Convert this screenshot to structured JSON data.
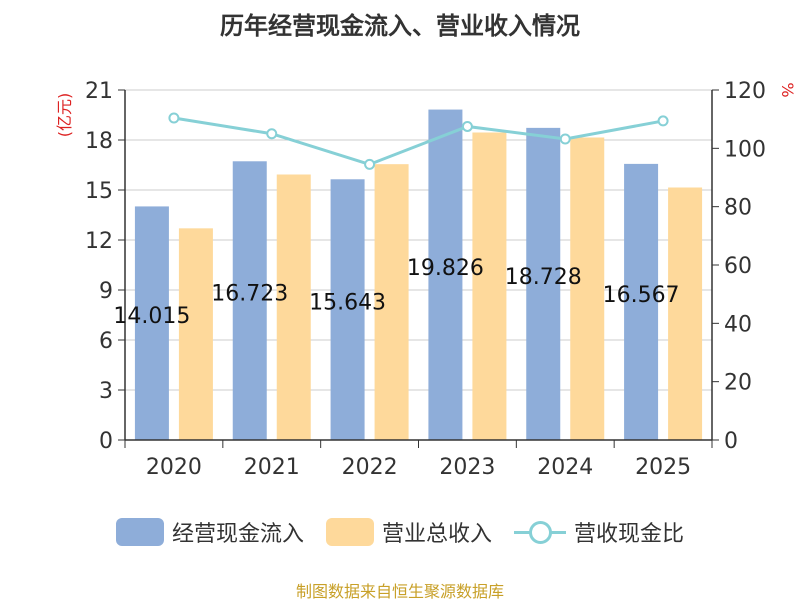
{
  "title": "历年经营现金流入、营业收入情况",
  "source": "制图数据来自恒生聚源数据库",
  "colors": {
    "cash_inflow": "#8eadd9",
    "revenue": "#fed99b",
    "ratio": "#86d0d6",
    "left_axis_label": "#dd2222",
    "right_axis_label": "#dd2222"
  },
  "chart_data": {
    "type": "bar",
    "categories": [
      "2020",
      "2021",
      "2022",
      "2023",
      "2024",
      "2025"
    ],
    "series": [
      {
        "name": "经营现金流入",
        "type": "bar",
        "axis": "left",
        "values": [
          14.015,
          16.723,
          15.643,
          19.826,
          18.728,
          16.567
        ]
      },
      {
        "name": "营业总收入",
        "type": "bar",
        "axis": "left",
        "values": [
          12.7,
          15.93,
          16.55,
          18.45,
          18.15,
          15.15
        ]
      },
      {
        "name": "营收现金比",
        "type": "line",
        "axis": "right",
        "values": [
          110.4,
          105.0,
          94.5,
          107.5,
          103.2,
          109.4
        ]
      }
    ],
    "data_labels": [
      "14.015",
      "16.723",
      "15.643",
      "19.826",
      "18.728",
      "16.567"
    ],
    "y_left": {
      "label": "(亿元)",
      "ylim": [
        0,
        21
      ],
      "ticks": [
        0,
        3,
        6,
        9,
        12,
        15,
        18,
        21
      ]
    },
    "y_right": {
      "label": "%",
      "ylim": [
        0,
        120
      ],
      "ticks": [
        0,
        20,
        40,
        60,
        80,
        100,
        120
      ]
    },
    "grid": true,
    "legend_position": "bottom"
  }
}
